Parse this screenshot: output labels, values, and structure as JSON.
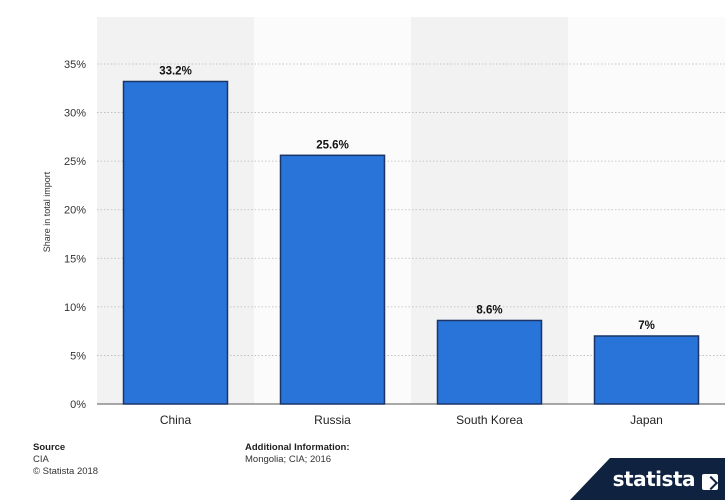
{
  "chart_data": {
    "type": "bar",
    "categories": [
      "China",
      "Russia",
      "South Korea",
      "Japan"
    ],
    "values": [
      33.2,
      25.6,
      8.6,
      7
    ],
    "data_labels": [
      "33.2%",
      "25.6%",
      "8.6%",
      "7%"
    ],
    "title": "",
    "xlabel": "",
    "ylabel": "Share in total import",
    "ylim": [
      0,
      35
    ],
    "yticks": [
      0,
      5,
      10,
      15,
      20,
      25,
      30,
      35
    ],
    "ytick_labels": [
      "0%",
      "5%",
      "10%",
      "15%",
      "20%",
      "25%",
      "30%",
      "35%"
    ],
    "grid": true,
    "bar_color": "#2874d9",
    "bar_edge_color": "#1a3566"
  },
  "footer": {
    "source_heading": "Source",
    "source_value": "CIA",
    "copyright": "© Statista 2018",
    "info_heading": "Additional Information:",
    "info_value": "Mongolia; CIA; 2016"
  },
  "brand": {
    "name": "statista",
    "icon": "statista-arrow-icon",
    "color": "#0f2340"
  }
}
